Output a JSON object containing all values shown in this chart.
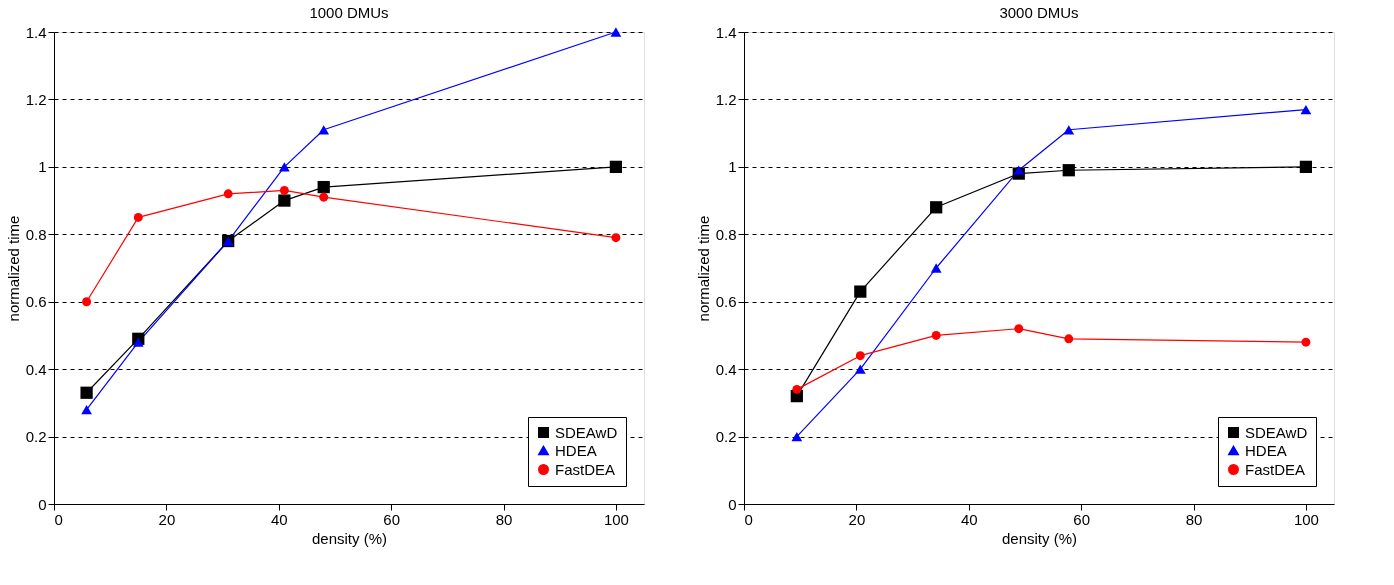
{
  "chart_data": [
    {
      "type": "line",
      "title": "1000 DMUs",
      "xlabel": "density (%)",
      "ylabel": "normalized time",
      "xlim": [
        0,
        105
      ],
      "xticks": [
        0,
        20,
        40,
        60,
        80,
        100
      ],
      "ylim": [
        0,
        1.4
      ],
      "yticks": [
        0,
        0.2,
        0.4,
        0.6,
        0.8,
        1,
        1.2,
        1.4
      ],
      "grid": "y",
      "legend": "bottom right",
      "series": [
        {
          "name": "SDEAwD",
          "color": "#000000",
          "marker": "square",
          "x": [
            5.8,
            15,
            31,
            41,
            48,
            100
          ],
          "values": [
            0.33,
            0.49,
            0.78,
            0.9,
            0.94,
            1.0
          ]
        },
        {
          "name": "HDEA",
          "color": "#0000ff",
          "marker": "triangle",
          "x": [
            5.8,
            15,
            31,
            41,
            48,
            100
          ],
          "values": [
            0.28,
            0.48,
            0.78,
            1.0,
            1.11,
            1.4
          ]
        },
        {
          "name": "FastDEA",
          "color": "#ff0000",
          "marker": "circle",
          "x": [
            5.8,
            15,
            31,
            41,
            48,
            100
          ],
          "values": [
            0.6,
            0.85,
            0.92,
            0.93,
            0.91,
            0.79
          ]
        }
      ]
    },
    {
      "type": "line",
      "title": "3000 DMUs",
      "xlabel": "density (%)",
      "ylabel": "normalized time",
      "xlim": [
        0,
        105
      ],
      "xticks": [
        0,
        20,
        40,
        60,
        80,
        100
      ],
      "ylim": [
        0,
        1.4
      ],
      "yticks": [
        0,
        0.2,
        0.4,
        0.6,
        0.8,
        1,
        1.2,
        1.4
      ],
      "grid": "y",
      "legend": "bottom right",
      "series": [
        {
          "name": "SDEAwD",
          "color": "#000000",
          "marker": "square",
          "x": [
            9.4,
            20.7,
            34.2,
            48.9,
            57.8,
            100
          ],
          "values": [
            0.32,
            0.63,
            0.88,
            0.98,
            0.99,
            1.0
          ]
        },
        {
          "name": "HDEA",
          "color": "#0000ff",
          "marker": "triangle",
          "x": [
            9.4,
            20.7,
            34.2,
            48.9,
            57.8,
            100
          ],
          "values": [
            0.2,
            0.4,
            0.7,
            0.99,
            1.11,
            1.17
          ]
        },
        {
          "name": "FastDEA",
          "color": "#ff0000",
          "marker": "circle",
          "x": [
            9.4,
            20.7,
            34.2,
            48.9,
            57.8,
            100
          ],
          "values": [
            0.34,
            0.44,
            0.5,
            0.52,
            0.49,
            0.48
          ]
        }
      ]
    }
  ]
}
